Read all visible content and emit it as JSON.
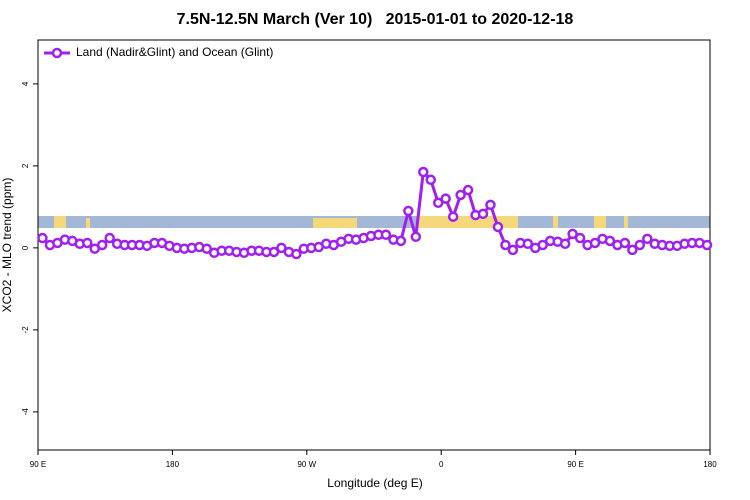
{
  "chart_data": {
    "type": "line",
    "title": "7.5N-12.5N March (Ver 10)   2015-01-01 to 2020-12-18",
    "x_label": "Longitude (deg E)",
    "y_label": "XCO2 - MLO trend (ppm)",
    "xlim": [
      90,
      540
    ],
    "ylim": [
      -4.93,
      5.07
    ],
    "xticks": [
      {
        "value": 90,
        "label": "90 E"
      },
      180,
      {
        "value": 270,
        "label": "90 W"
      },
      {
        "value": 360,
        "label": "0"
      },
      {
        "value": 450,
        "label": "90 E"
      },
      {
        "value": 540,
        "label": "180"
      }
    ],
    "yticks": [
      -4,
      -2,
      0,
      2,
      4
    ],
    "legend": "top-left",
    "x": [
      93,
      98,
      103,
      108,
      113,
      118,
      123,
      128,
      133,
      138,
      143,
      148,
      153,
      158,
      163,
      168,
      173,
      178,
      183,
      188,
      193,
      198,
      203,
      208,
      213,
      218,
      223,
      228,
      233,
      238,
      243,
      248,
      253,
      258,
      263,
      268,
      273,
      278,
      283,
      288,
      293,
      298,
      303,
      308,
      313,
      318,
      323,
      328,
      333,
      338,
      343,
      348,
      353,
      358,
      363,
      368,
      373,
      378,
      383,
      388,
      393,
      398,
      403,
      408,
      413,
      418,
      423,
      428,
      433,
      438,
      443,
      448,
      453,
      458,
      463,
      468,
      473,
      478,
      483,
      488,
      493,
      498,
      503,
      508,
      513,
      518,
      523,
      528,
      533,
      538
    ],
    "series": [
      {
        "name": "Land (Nadir&Glint) and Ocean (Glint)",
        "color": "#a020f0",
        "values": [
          0.24,
          0.07,
          0.12,
          0.2,
          0.17,
          0.1,
          0.12,
          -0.02,
          0.07,
          0.24,
          0.1,
          0.07,
          0.07,
          0.07,
          0.05,
          0.12,
          0.12,
          0.05,
          0,
          -0.02,
          0,
          0.02,
          -0.02,
          -0.12,
          -0.07,
          -0.07,
          -0.1,
          -0.12,
          -0.07,
          -0.07,
          -0.1,
          -0.1,
          0,
          -0.1,
          -0.15,
          -0.02,
          0,
          0.02,
          0.1,
          0.07,
          0.15,
          0.22,
          0.2,
          0.24,
          0.29,
          0.32,
          0.32,
          0.2,
          0.17,
          0.9,
          0.27,
          1.85,
          1.66,
          1.1,
          1.2,
          0.76,
          1.29,
          1.41,
          0.8,
          0.83,
          1.05,
          0.51,
          0.07,
          -0.05,
          0.12,
          0.1,
          0,
          0.07,
          0.17,
          0.15,
          0.1,
          0.34,
          0.24,
          0.07,
          0.12,
          0.22,
          0.17,
          0.07,
          0.12,
          -0.05,
          0.07,
          0.22,
          0.1,
          0.07,
          0.05,
          0.05,
          0.1,
          0.12,
          0.12,
          0.07
        ]
      }
    ]
  }
}
